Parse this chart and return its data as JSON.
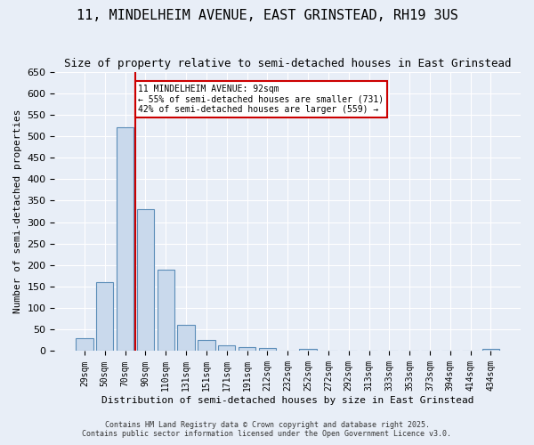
{
  "title": "11, MINDELHEIM AVENUE, EAST GRINSTEAD, RH19 3US",
  "subtitle": "Size of property relative to semi-detached houses in East Grinstead",
  "xlabel": "Distribution of semi-detached houses by size in East Grinstead",
  "ylabel": "Number of semi-detached properties",
  "categories": [
    "29sqm",
    "50sqm",
    "70sqm",
    "90sqm",
    "110sqm",
    "131sqm",
    "151sqm",
    "171sqm",
    "191sqm",
    "212sqm",
    "232sqm",
    "252sqm",
    "272sqm",
    "292sqm",
    "313sqm",
    "333sqm",
    "353sqm",
    "373sqm",
    "394sqm",
    "414sqm",
    "434sqm"
  ],
  "values": [
    30,
    160,
    520,
    330,
    190,
    60,
    25,
    13,
    10,
    7,
    0,
    5,
    0,
    0,
    0,
    0,
    0,
    0,
    0,
    0,
    5
  ],
  "bar_color": "#c9d9ec",
  "bar_edge_color": "#5b8db8",
  "red_line_x": 2.5,
  "red_line_label": "11 MINDELHEIM AVENUE: 92sqm",
  "annotation_line1": "← 55% of semi-detached houses are smaller (731)",
  "annotation_line2": "42% of semi-detached houses are larger (559) →",
  "annotation_box_color": "#ffffff",
  "annotation_box_edge": "#cc0000",
  "background_color": "#e8eef7",
  "plot_background": "#e8eef7",
  "grid_color": "#ffffff",
  "footer1": "Contains HM Land Registry data © Crown copyright and database right 2025.",
  "footer2": "Contains public sector information licensed under the Open Government Licence v3.0.",
  "ylim": [
    0,
    650
  ],
  "yticks": [
    0,
    50,
    100,
    150,
    200,
    250,
    300,
    350,
    400,
    450,
    500,
    550,
    600,
    650
  ]
}
